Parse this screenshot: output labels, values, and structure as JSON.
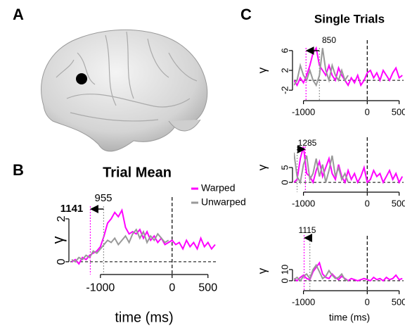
{
  "panel_labels": [
    "A",
    "B",
    "C"
  ],
  "chart_data": [
    {
      "type": "line",
      "title": "Trial Mean",
      "xlabel": "time (ms)",
      "ylabel": "γ",
      "legend": "upper right",
      "x": [
        -1400,
        -1350,
        -1300,
        -1250,
        -1200,
        -1150,
        -1100,
        -1050,
        -1000,
        -950,
        -900,
        -850,
        -800,
        -750,
        -700,
        -650,
        -600,
        -550,
        -500,
        -450,
        -400,
        -350,
        -300,
        -250,
        -200,
        -150,
        -100,
        -50,
        0,
        50,
        100,
        150,
        200,
        250,
        300,
        350,
        400,
        450,
        500,
        550,
        600
      ],
      "series": [
        {
          "name": "Warped",
          "color": "#ff00ff",
          "values": [
            0,
            0.1,
            -0.1,
            0.2,
            0.1,
            0.3,
            0.4,
            0.5,
            0.7,
            1.2,
            1.8,
            2.0,
            2.3,
            2.1,
            2.4,
            1.6,
            1.3,
            1.4,
            1.3,
            1.5,
            1.1,
            1.4,
            1.0,
            1.2,
            0.9,
            1.1,
            0.8,
            0.9,
            1.0,
            0.8,
            0.9,
            0.6,
            1.0,
            0.7,
            0.9,
            0.6,
            1.1,
            0.7,
            0.9,
            0.6,
            0.8
          ]
        },
        {
          "name": "Unwarped",
          "color": "#999999",
          "values": [
            0.1,
            0,
            0.2,
            0.1,
            0.3,
            0.2,
            0.5,
            0.4,
            0.6,
            0.8,
            1.0,
            0.9,
            1.1,
            0.8,
            1.0,
            1.2,
            0.9,
            1.3,
            1.5,
            1.1,
            1.4,
            0.9,
            1.2,
            1.0,
            1.3,
            1.1,
            0.9,
            1.0,
            null,
            null,
            null,
            null,
            null,
            null,
            null,
            null,
            null,
            null,
            null,
            null,
            null
          ]
        }
      ],
      "xlim": [
        -1420,
        620
      ],
      "ylim": [
        -0.43,
        2.85
      ],
      "xticks": [
        -1000,
        0,
        500
      ],
      "yticks": [
        0,
        2
      ],
      "vlines": [
        {
          "x": -1141,
          "color": "#ff00ff"
        },
        {
          "x": -955,
          "color": "#999999"
        }
      ],
      "annotations": [
        {
          "label": "1141",
          "color": "#ff00ff"
        },
        {
          "label": "955",
          "color": "#777777"
        }
      ]
    },
    {
      "type": "line",
      "title": "Single Trials",
      "ylabel": "γ",
      "x": [
        -1150,
        -1100,
        -1050,
        -1000,
        -950,
        -900,
        -850,
        -800,
        -750,
        -700,
        -650,
        -600,
        -550,
        -500,
        -450,
        -400,
        -350,
        -300,
        -250,
        -200,
        -150,
        -100,
        -50,
        0,
        50,
        100,
        150,
        200,
        250,
        300,
        350,
        400,
        450,
        500,
        550
      ],
      "series": [
        {
          "name": "Warped",
          "color": "#ff00ff",
          "values": [
            0,
            -1,
            0.5,
            -0.5,
            1,
            3,
            5.5,
            6.5,
            3,
            2,
            1,
            3,
            1,
            0,
            2.5,
            1,
            0,
            -1,
            0.5,
            -0.5,
            1,
            -1,
            0,
            1.5,
            2,
            0.5,
            1.5,
            0,
            2,
            1,
            0,
            1.5,
            2.5,
            0.5,
            1
          ]
        },
        {
          "name": "Unwarped",
          "color": "#999999",
          "values": [
            -1,
            0,
            3,
            1,
            0,
            2,
            0,
            -1,
            1,
            6.5,
            2,
            0,
            3,
            1,
            0,
            2,
            0,
            1,
            null,
            null,
            null,
            null,
            null,
            null,
            null,
            null,
            null,
            null,
            null,
            null,
            null,
            null,
            null,
            null,
            null
          ]
        }
      ],
      "xlim": [
        -1150,
        570
      ],
      "ylim": [
        -3.4,
        7.4
      ],
      "xticks": [
        -1000,
        0,
        500
      ],
      "yticks": [
        -2,
        2,
        6
      ],
      "vlines": [
        {
          "x": -960,
          "color": "#ff00ff"
        },
        {
          "x": -750,
          "color": "#999999"
        }
      ],
      "annotations": [
        {
          "label": "850",
          "color": "#777777"
        }
      ]
    },
    {
      "type": "line",
      "ylabel": "γ",
      "x": [
        -1150,
        -1100,
        -1050,
        -1000,
        -950,
        -900,
        -850,
        -800,
        -750,
        -700,
        -650,
        -600,
        -550,
        -500,
        -450,
        -400,
        -350,
        -300,
        -250,
        -200,
        -150,
        -100,
        -50,
        0,
        50,
        100,
        150,
        200,
        250,
        300,
        350,
        400,
        450,
        500,
        550
      ],
      "series": [
        {
          "name": "Warped",
          "color": "#ff00ff",
          "values": [
            0,
            1,
            8,
            12,
            3,
            2,
            0,
            4,
            7,
            2,
            5,
            8,
            3,
            1,
            6,
            2,
            0,
            4,
            1,
            3,
            0,
            2,
            5,
            0,
            1,
            4,
            2,
            3,
            0,
            2,
            4,
            1,
            3,
            0,
            2
          ]
        },
        {
          "name": "Unwarped",
          "color": "#999999",
          "values": [
            10,
            2,
            0,
            6,
            9,
            1,
            3,
            8,
            2,
            6,
            0,
            4,
            9,
            2,
            5,
            1,
            3,
            0,
            null,
            null,
            null,
            null,
            null,
            null,
            null,
            null,
            null,
            null,
            null,
            null,
            null,
            null,
            null,
            null,
            null
          ]
        }
      ],
      "xlim": [
        -1150,
        570
      ],
      "ylim": [
        -2.1,
        14
      ],
      "xticks": [
        -1000,
        0,
        500
      ],
      "yticks": [
        0,
        5
      ],
      "vlines": [
        {
          "x": -970,
          "color": "#ff00ff"
        },
        {
          "x": -1100,
          "color": "#999999"
        }
      ],
      "annotations": [
        {
          "label": "1285",
          "color": "#777777"
        }
      ]
    },
    {
      "type": "line",
      "xlabel": "time (ms)",
      "ylabel": "γ",
      "x": [
        -1150,
        -1100,
        -1050,
        -1000,
        -950,
        -900,
        -850,
        -800,
        -750,
        -700,
        -650,
        -600,
        -550,
        -500,
        -450,
        -400,
        -350,
        -300,
        -250,
        -200,
        -150,
        -100,
        -50,
        0,
        50,
        100,
        150,
        200,
        250,
        300,
        350,
        400,
        450,
        500,
        550
      ],
      "series": [
        {
          "name": "Warped",
          "color": "#ff00ff",
          "values": [
            2,
            0,
            3,
            5,
            2,
            1,
            8,
            12,
            16,
            6,
            3,
            2,
            6,
            3,
            1,
            4,
            2,
            0,
            2,
            1,
            0,
            1,
            2,
            1,
            0,
            3,
            1,
            2,
            0,
            3,
            1,
            2,
            5,
            1,
            2
          ]
        },
        {
          "name": "Unwarped",
          "color": "#999999",
          "values": [
            1,
            3,
            0,
            4,
            6,
            2,
            10,
            14,
            8,
            2,
            4,
            9,
            5,
            2,
            3,
            6,
            1,
            0,
            null,
            null,
            null,
            null,
            null,
            null,
            null,
            null,
            null,
            null,
            null,
            null,
            null,
            null,
            null,
            null,
            null
          ]
        }
      ],
      "xlim": [
        -1150,
        570
      ],
      "ylim": [
        -7,
        37
      ],
      "xticks": [
        -1000,
        0,
        500
      ],
      "yticks": [
        0,
        10
      ],
      "vlines": [
        {
          "x": -990,
          "color": "#ff00ff"
        },
        {
          "x": -900,
          "color": "#999999"
        }
      ],
      "annotations": [
        {
          "label": "1115",
          "color": "#777777"
        }
      ]
    }
  ]
}
